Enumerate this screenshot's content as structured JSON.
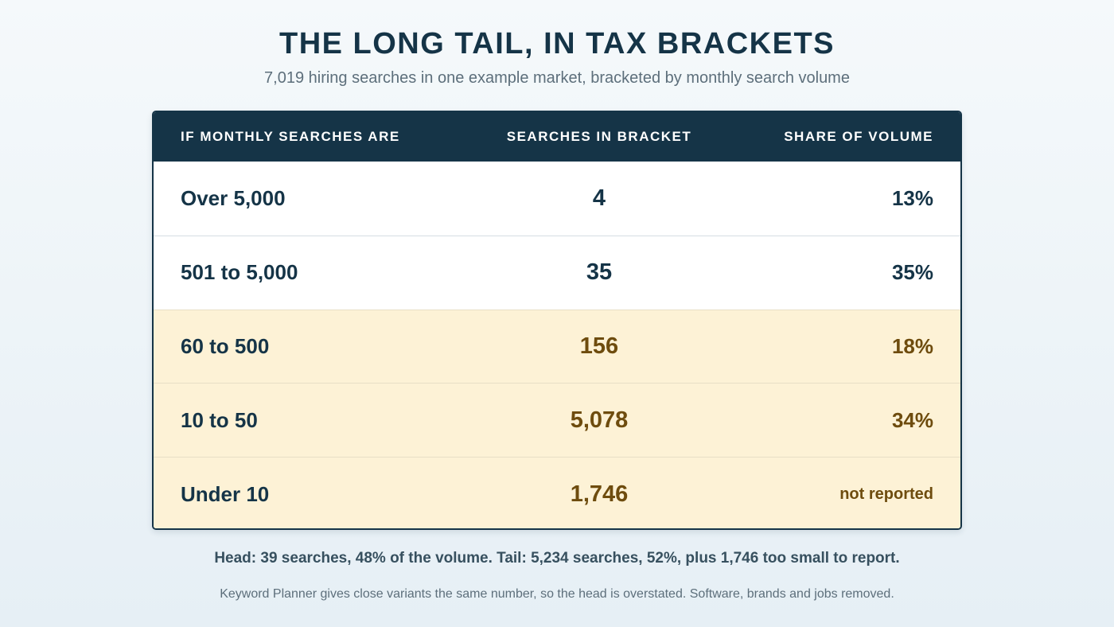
{
  "title": "THE LONG TAIL, IN TAX BRACKETS",
  "subtitle": "7,019 hiring searches in one example market, bracketed by monthly search volume",
  "colors": {
    "header_bg": "#153447",
    "head_row_bg": "#ffffff",
    "tail_row_bg": "#fdf2d6",
    "head_text": "#153447",
    "tail_text": "#6e4c0e"
  },
  "chart_data": {
    "type": "table",
    "title": "THE LONG TAIL, IN TAX BRACKETS",
    "subtitle": "7,019 hiring searches in one example market, bracketed by monthly search volume",
    "columns": [
      "IF MONTHLY SEARCHES ARE",
      "SEARCHES IN BRACKET",
      "SHARE OF VOLUME"
    ],
    "rows": [
      {
        "bracket": "Over 5,000",
        "searches": "4",
        "share": "13%",
        "group": "head"
      },
      {
        "bracket": "501 to 5,000",
        "searches": "35",
        "share": "35%",
        "group": "head"
      },
      {
        "bracket": "60 to 500",
        "searches": "156",
        "share": "18%",
        "group": "tail"
      },
      {
        "bracket": "10 to 50",
        "searches": "5,078",
        "share": "34%",
        "group": "tail"
      },
      {
        "bracket": "Under 10",
        "searches": "1,746",
        "share": "not reported",
        "group": "tail"
      }
    ]
  },
  "summary": "Head: 39 searches, 48% of the volume. Tail: 5,234 searches, 52%, plus 1,746 too small to report.",
  "note": "Keyword Planner gives close variants the same number, so the head is overstated. Software, brands and jobs removed."
}
